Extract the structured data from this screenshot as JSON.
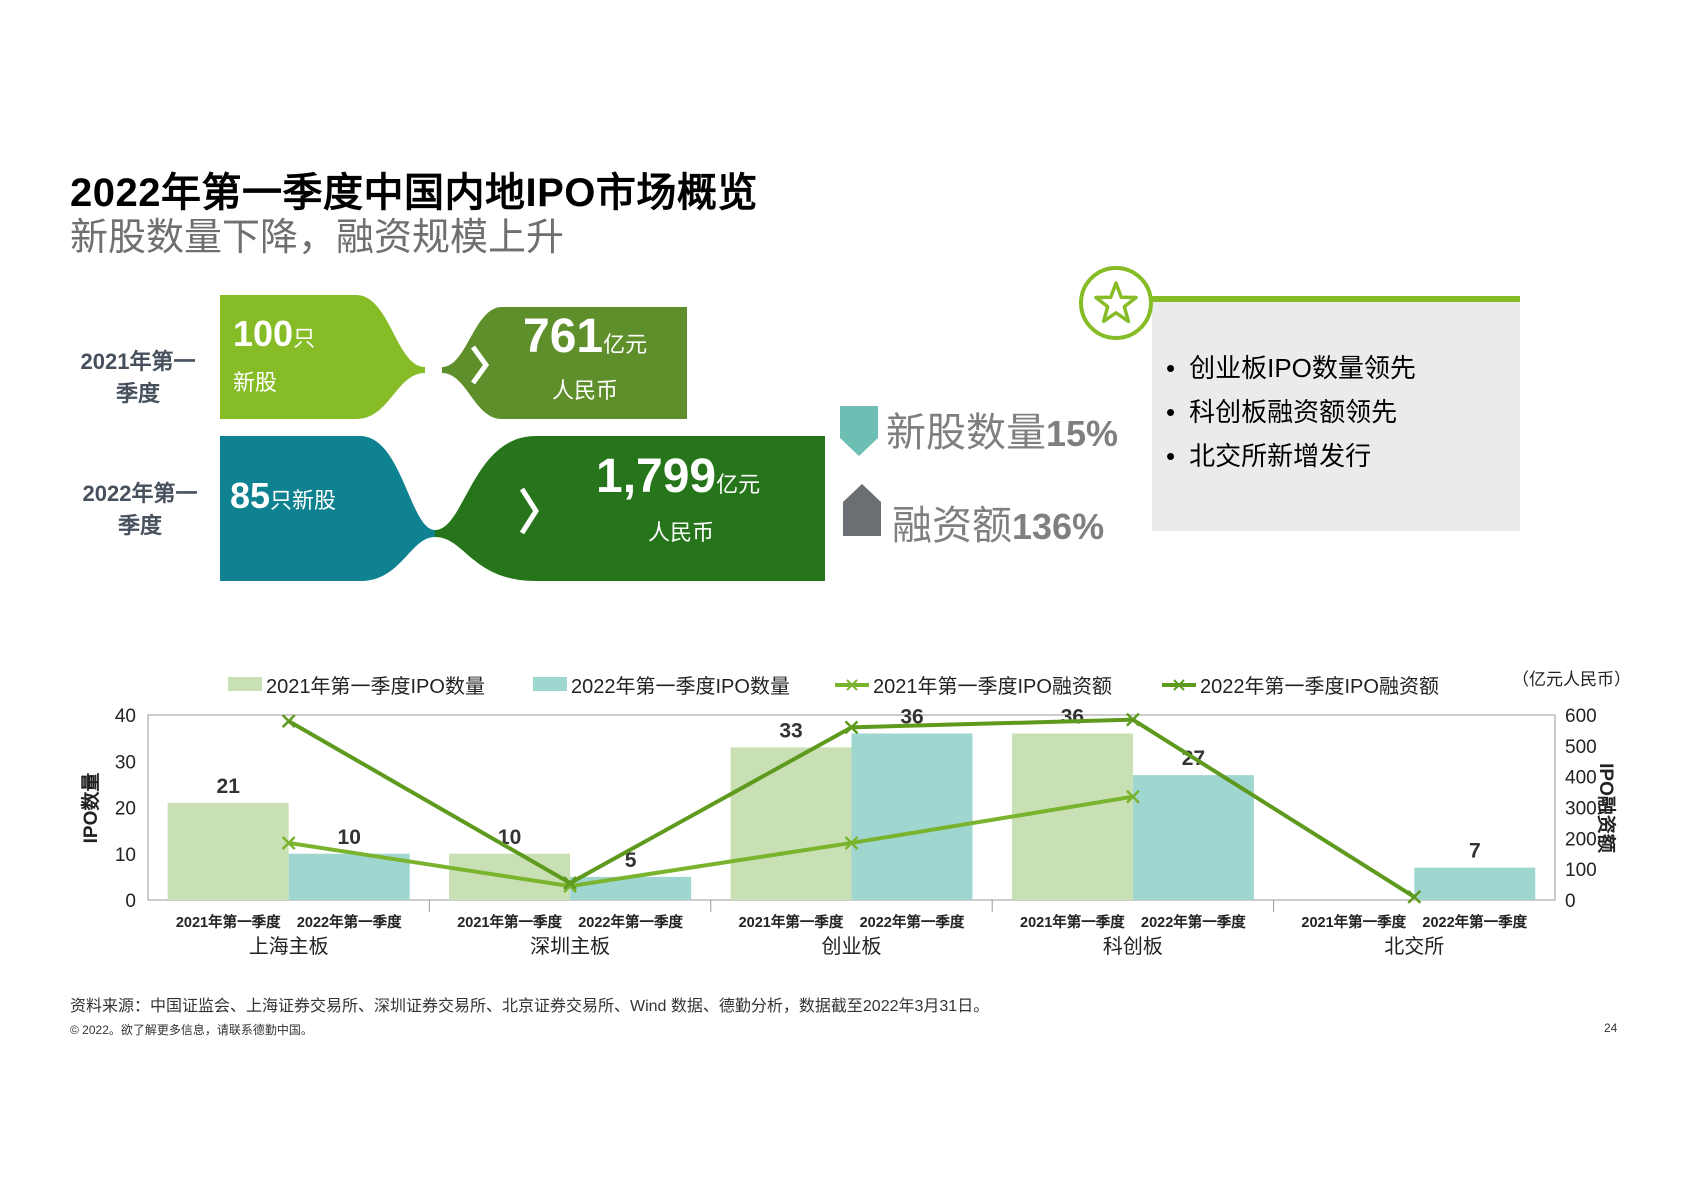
{
  "header": {
    "title": "2022年第一季度中国内地IPO市场概览",
    "subtitle": "新股数量下降，融资规模上升"
  },
  "flow": {
    "rows": [
      {
        "label_line1": "2021年第一",
        "label_line2": "季度",
        "count": "100",
        "count_unit": "只",
        "count_label": "新股",
        "amount": "761",
        "amount_unit": "亿元",
        "currency": "人民币"
      },
      {
        "label_line1": "2022年第一",
        "label_line2": "季度",
        "count": "85",
        "count_unit": "只新股",
        "amount": "1,799",
        "amount_unit": "亿元",
        "currency": "人民币"
      }
    ],
    "colors": {
      "light_green": "#86bc25",
      "mid_green": "#5f8f2a",
      "teal": "#0f8291",
      "dark_green": "#26751a"
    }
  },
  "indicators": [
    {
      "label": "新股数量",
      "value": "15%",
      "icon": "down-arrow-icon",
      "color": "#6dbfb3"
    },
    {
      "label": "融资额",
      "value": "136%",
      "icon": "up-arrow-icon",
      "color": "#6b6e72"
    }
  ],
  "highlights": {
    "icon": "star-icon",
    "items": [
      "创业板IPO数量领先",
      "科创板融资额领先",
      "北交所新增发行"
    ]
  },
  "chart_data": {
    "type": "bar",
    "unit_note": "（亿元人民币）",
    "ylabel_left": "IPO数量",
    "ylabel_right": "IPO融资额",
    "ylim_left": [
      0,
      40
    ],
    "ylim_right": [
      0,
      600
    ],
    "yticks_left": [
      "0",
      "10",
      "20",
      "30",
      "40"
    ],
    "yticks_right": [
      "0",
      "100",
      "200",
      "300",
      "400",
      "500",
      "600"
    ],
    "groups": [
      "上海主板",
      "深圳主板",
      "创业板",
      "科创板",
      "北交所"
    ],
    "sub_labels": [
      "2021年第一季度",
      "2022年第一季度"
    ],
    "series": [
      {
        "name": "2021年第一季度IPO数量",
        "kind": "bar",
        "axis": "left",
        "color": "#c9e0b4",
        "values": [
          21,
          10,
          33,
          36,
          null
        ],
        "labels": [
          "21",
          "10",
          "33",
          "36",
          ""
        ]
      },
      {
        "name": "2022年第一季度IPO数量",
        "kind": "bar",
        "axis": "left",
        "color": "#a0d6d0",
        "values": [
          10,
          5,
          36,
          27,
          7
        ],
        "labels": [
          "10",
          "5",
          "36",
          "27",
          "7"
        ]
      },
      {
        "name": "2021年第一季度IPO融资额",
        "kind": "line",
        "axis": "right",
        "color": "#7ab32e",
        "marker": "x",
        "values": [
          185,
          45,
          185,
          335,
          null
        ]
      },
      {
        "name": "2022年第一季度IPO融资额",
        "kind": "line",
        "axis": "right",
        "color": "#5e9a1e",
        "marker": "x",
        "values": [
          580,
          55,
          560,
          585,
          10
        ]
      }
    ],
    "legend_position": "top"
  },
  "footer": {
    "source": "资料来源：中国证监会、上海证券交易所、深圳证券交易所、北京证券交易所、Wind 数据、德勤分析，数据截至2022年3月31日。",
    "copyright": "© 2022。欲了解更多信息，请联系德勤中国。",
    "page_number": "24"
  }
}
